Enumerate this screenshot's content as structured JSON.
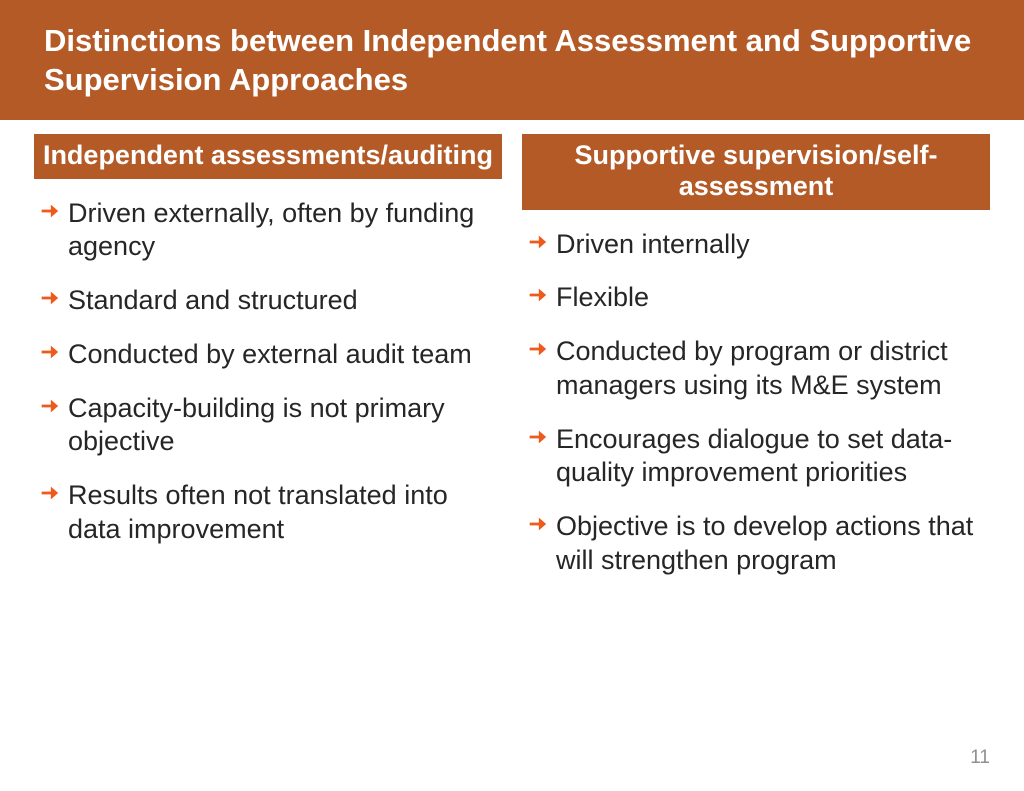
{
  "colors": {
    "header_bg": "#b35a27",
    "header_text": "#ffffff",
    "col_header_bg": "#b35a27",
    "col_header_text": "#ffffff",
    "arrow": "#ee5a1c",
    "body_text": "#262626",
    "page_num": "#8f8f8f",
    "slide_bg": "#ffffff"
  },
  "typography": {
    "title_fontsize": 31,
    "col_header_fontsize": 27,
    "bullet_fontsize": 27,
    "page_num_fontsize": 19
  },
  "title": "Distinctions between Independent Assessment and Supportive Supervision Approaches",
  "columns": [
    {
      "header": "Independent assessments/auditing",
      "items": [
        "Driven externally, often by funding agency",
        "Standard and structured",
        "Conducted by external audit team",
        "Capacity-building is not primary objective",
        "Results often not translated into data improvement"
      ]
    },
    {
      "header": "Supportive supervision/self-assessment",
      "items": [
        "Driven internally",
        "Flexible",
        "Conducted by program or district managers using its M&E system",
        "Encourages dialogue to set data-quality improvement priorities",
        "Objective is to develop actions that will strengthen program"
      ]
    }
  ],
  "page_number": "11"
}
